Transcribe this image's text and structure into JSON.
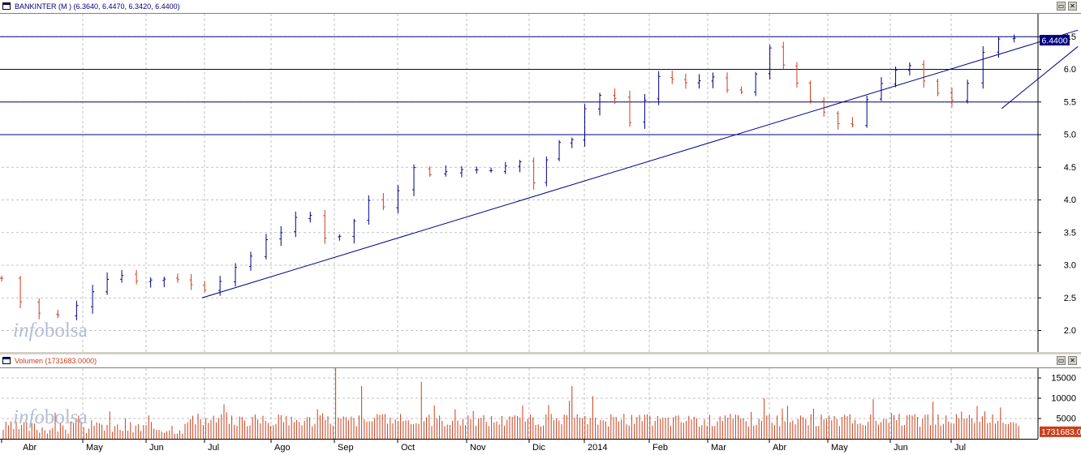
{
  "price_panel": {
    "title": "BANKINTER (M ) (6.3640, 6.4470, 6.3420, 6.4400)",
    "last_value_label": "6.4400",
    "watermark": {
      "part1": "info",
      "part2": "bolsa"
    },
    "buttons": [
      "▭",
      "✕"
    ]
  },
  "volume_panel": {
    "title": "Volumen (1731683.0000)",
    "last_value_label": "1731683.0",
    "watermark": {
      "part1": "info",
      "part2": "bolsa"
    },
    "buttons": [
      "▭",
      "✕"
    ]
  },
  "colors": {
    "up": "#000080",
    "down": "#c8401c",
    "grid": "#b0b0b0",
    "hline": "#000080",
    "volume": "#c8401c",
    "label_bg": "#000080"
  },
  "chart_data": [
    {
      "type": "ohlc",
      "title": "BANKINTER (M ) (6.3640, 6.4470, 6.3420, 6.4400)",
      "ylim": [
        1.8,
        6.9
      ],
      "yticks": [
        "2.0",
        "2.5",
        "3.0",
        "3.5",
        "4.0",
        "4.5",
        "5.0",
        "5.5",
        "6.0",
        "6.5"
      ],
      "horizontal_lines": [
        6.5,
        6.0,
        5.5,
        5.0
      ],
      "trendlines": [
        {
          "from": [
            "Jun",
            2.5
          ],
          "to": [
            "Jul end",
            6.6
          ]
        },
        {
          "from": [
            "Jul",
            5.4
          ],
          "to": [
            "Jul end",
            6.35
          ]
        }
      ],
      "close_points": [
        [
          "Mar-end",
          2.8
        ],
        [
          "Apr-mid",
          2.3
        ],
        [
          "Apr",
          2.2
        ],
        [
          "Apr-end",
          2.4
        ],
        [
          "May-start",
          2.8
        ],
        [
          "May",
          2.85
        ],
        [
          "May-mid",
          2.75
        ],
        [
          "Jun-start",
          2.8
        ],
        [
          "Jun",
          2.8
        ],
        [
          "Jun-end",
          2.6
        ],
        [
          "Jul",
          2.8
        ],
        [
          "Jul-end",
          3.0
        ],
        [
          "Ago-start",
          3.4
        ],
        [
          "Ago",
          3.55
        ],
        [
          "Ago-mid",
          3.85
        ],
        [
          "Ago-end",
          3.4
        ],
        [
          "Sep",
          3.5
        ],
        [
          "Sep-mid",
          4.0
        ],
        [
          "Sep-end",
          3.9
        ],
        [
          "Oct",
          4.5
        ],
        [
          "Oct-mid",
          4.4
        ],
        [
          "Oct-end",
          4.45
        ],
        [
          "Nov",
          4.5
        ],
        [
          "Nov-mid",
          4.4
        ],
        [
          "Nov-end",
          4.65
        ],
        [
          "Dic",
          4.2
        ],
        [
          "Dic-mid",
          4.9
        ],
        [
          "Dic-end",
          4.95
        ],
        [
          "2014",
          5.6
        ],
        [
          "Jan-mid",
          5.6
        ],
        [
          "Jan-end",
          5.1
        ],
        [
          "Feb",
          5.9
        ],
        [
          "Feb-mid",
          5.85
        ],
        [
          "Feb-end",
          5.75
        ],
        [
          "Mar",
          5.95
        ],
        [
          "Mar-mid",
          5.6
        ],
        [
          "Mar-end",
          5.75
        ],
        [
          "Apr",
          6.4
        ],
        [
          "Apr-mid",
          5.9
        ],
        [
          "Apr-end",
          5.5
        ],
        [
          "May",
          5.3
        ],
        [
          "May-mid",
          5.05
        ],
        [
          "May-end",
          5.6
        ],
        [
          "Jun",
          5.95
        ],
        [
          "Jun-mid",
          6.05
        ],
        [
          "Jun-end",
          5.7
        ],
        [
          "Jul",
          5.5
        ],
        [
          "Jul-mid",
          5.85
        ],
        [
          "Jul-end",
          6.5
        ],
        [
          "last",
          6.44
        ]
      ]
    },
    {
      "type": "bar",
      "title": "Volumen (1731683.0000)",
      "ylim": [
        0,
        19000
      ],
      "yticks": [
        "5000",
        "10000",
        "15000"
      ],
      "peaks": [
        [
          "Sep-start",
          17500
        ],
        [
          "Sep-mid",
          13000
        ],
        [
          "Oct-mid",
          14000
        ],
        [
          "Dic-end",
          13000
        ],
        [
          "Jan",
          10500
        ],
        [
          "Apr",
          10000
        ],
        [
          "Jul-end",
          9000
        ]
      ]
    }
  ],
  "x_axis": {
    "labels": [
      "Abr",
      "May",
      "Jun",
      "Jul",
      "Ago",
      "Sep",
      "Oct",
      "Nov",
      "Dic",
      "2014",
      "Feb",
      "Mar",
      "Abr",
      "May",
      "Jun",
      "Jul"
    ]
  }
}
